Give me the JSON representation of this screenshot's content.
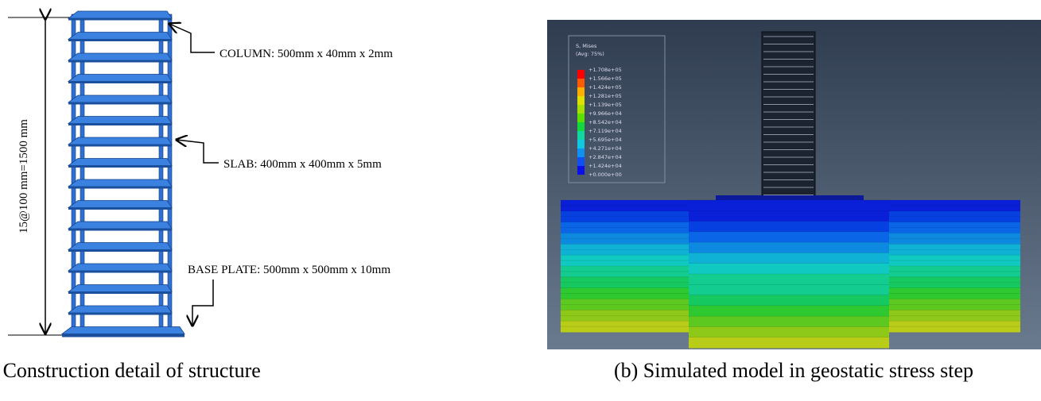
{
  "panel_a": {
    "dimension": "15@100 mm=1500 mm",
    "labels": [
      "COLUMN: 500mm x 40mm x 2mm",
      "SLAB: 400mm x 400mm x 5mm",
      "BASE PLATE: 500mm x 500mm x 10mm"
    ],
    "caption": "(a) Construction detail of structure"
  },
  "panel_b": {
    "legend_title": "S, Mises",
    "legend_subtitle": "(Avg: 75%)",
    "legend_values": [
      "+1.708e+05",
      "+1.566e+05",
      "+1.424e+05",
      "+1.281e+05",
      "+1.139e+05",
      "+9.966e+04",
      "+8.542e+04",
      "+7.119e+04",
      "+5.695e+04",
      "+4.271e+04",
      "+2.847e+04",
      "+1.424e+04",
      "+0.000e+00"
    ],
    "caption": "(b) Simulated model in geostatic stress step"
  }
}
